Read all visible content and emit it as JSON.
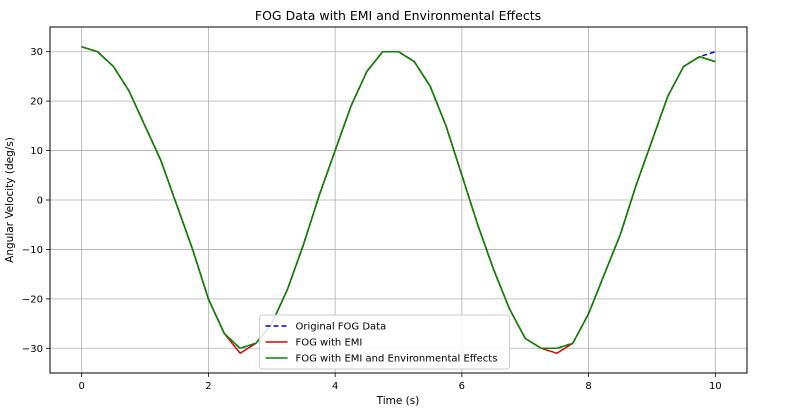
{
  "chart_data": {
    "type": "line",
    "title": "FOG Data with EMI and Environmental Effects",
    "xlabel": "Time (s)",
    "ylabel": "Angular Velocity (deg/s)",
    "xlim": [
      -0.5,
      10.5
    ],
    "ylim": [
      -35,
      35
    ],
    "x_ticks": [
      0,
      2,
      4,
      6,
      8,
      10
    ],
    "y_ticks": [
      -30,
      -20,
      -10,
      0,
      10,
      20,
      30
    ],
    "x_tick_labels": [
      "0",
      "2",
      "4",
      "6",
      "8",
      "10"
    ],
    "y_tick_labels": [
      "−30",
      "−20",
      "−10",
      "0",
      "10",
      "20",
      "30"
    ],
    "grid": true,
    "legend_position": "lower center",
    "series": [
      {
        "name": "Original FOG Data",
        "color": "#0000cc",
        "style": "dashed",
        "x": [
          0,
          0.25,
          0.5,
          0.75,
          1,
          1.25,
          1.5,
          1.75,
          2,
          2.25,
          2.5,
          2.75,
          3,
          3.25,
          3.5,
          3.75,
          4,
          4.25,
          4.5,
          4.75,
          5,
          5.25,
          5.5,
          5.75,
          6,
          6.25,
          6.5,
          6.75,
          7,
          7.25,
          7.5,
          7.75,
          8,
          8.25,
          8.5,
          8.75,
          9,
          9.25,
          9.5,
          9.75,
          10
        ],
        "y": [
          31,
          30,
          27,
          22,
          15,
          8,
          -1,
          -10,
          -20,
          -27,
          -30,
          -29,
          -25,
          -18,
          -9,
          1,
          10,
          19,
          26,
          30,
          30,
          28,
          23,
          15,
          5,
          -5,
          -14,
          -22,
          -28,
          -30,
          -30,
          -29,
          -23,
          -15,
          -7,
          3,
          12,
          21,
          27,
          29,
          30
        ]
      },
      {
        "name": "FOG with EMI",
        "color": "#dd0000",
        "style": "solid",
        "x": [
          0,
          0.25,
          0.5,
          0.75,
          1,
          1.25,
          1.5,
          1.75,
          2,
          2.25,
          2.5,
          2.75,
          3,
          3.25,
          3.5,
          3.75,
          4,
          4.25,
          4.5,
          4.75,
          5,
          5.25,
          5.5,
          5.75,
          6,
          6.25,
          6.5,
          6.75,
          7,
          7.25,
          7.5,
          7.75,
          8,
          8.25,
          8.5,
          8.75,
          9,
          9.25,
          9.5,
          9.75,
          10
        ],
        "y": [
          31,
          30,
          27,
          22,
          15,
          8,
          -1,
          -10,
          -20,
          -27,
          -31,
          -29,
          -25,
          -18,
          -9,
          1,
          10,
          19,
          26,
          30,
          30,
          28,
          23,
          15,
          5,
          -5,
          -14,
          -22,
          -28,
          -30,
          -31,
          -29,
          -23,
          -15,
          -7,
          3,
          12,
          21,
          27,
          29,
          28
        ]
      },
      {
        "name": "FOG with EMI and Environmental Effects",
        "color": "#008800",
        "style": "solid",
        "x": [
          0,
          0.25,
          0.5,
          0.75,
          1,
          1.25,
          1.5,
          1.75,
          2,
          2.25,
          2.5,
          2.75,
          3,
          3.25,
          3.5,
          3.75,
          4,
          4.25,
          4.5,
          4.75,
          5,
          5.25,
          5.5,
          5.75,
          6,
          6.25,
          6.5,
          6.75,
          7,
          7.25,
          7.5,
          7.75,
          8,
          8.25,
          8.5,
          8.75,
          9,
          9.25,
          9.5,
          9.75,
          10
        ],
        "y": [
          31,
          30,
          27,
          22,
          15,
          8,
          -1,
          -10,
          -20,
          -27,
          -30,
          -29,
          -25,
          -18,
          -9,
          1,
          10,
          19,
          26,
          30,
          30,
          28,
          23,
          15,
          5,
          -5,
          -14,
          -22,
          -28,
          -30,
          -30,
          -29,
          -23,
          -15,
          -7,
          3,
          12,
          21,
          27,
          29,
          28
        ]
      }
    ]
  }
}
